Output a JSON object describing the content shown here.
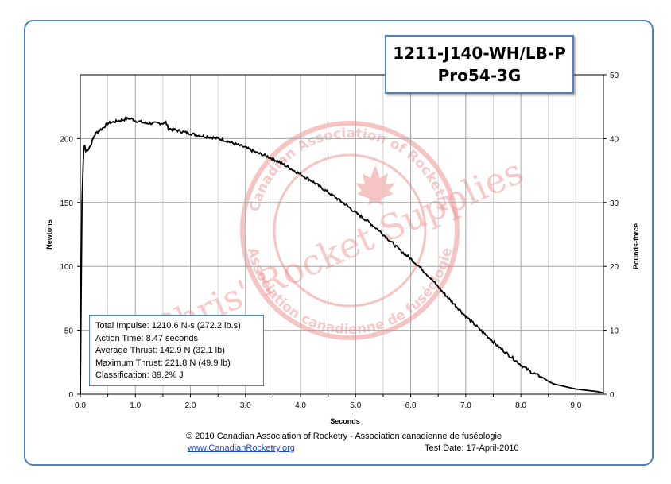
{
  "title": {
    "line1": "1211-J140-WH/LB-P",
    "line2": "Pro54-3G"
  },
  "stats": {
    "total_impulse": "Total Impulse: 1210.6 N-s (272.2 lb.s)",
    "action_time": "Action Time: 8.47 seconds",
    "average_thrust": "Average Thrust: 142.9 N (32.1 lb)",
    "maximum_thrust": "Maximum Thrust: 221.8 N (49.9 lb)",
    "classification": "Classification: 89.2% J"
  },
  "footer": {
    "copyright": "© 2010 Canadian Association of Rocketry - Association canadienne de fuséologie",
    "website": "www.CanadianRocketry.org",
    "test_date": "Test  Date: 17-April-2010"
  },
  "watermark": {
    "text": "Chris' Rocket Supplies",
    "seal_top": "Canadian Association of Rocketry",
    "seal_bottom": "Association canadienne de fuséologie"
  },
  "colors": {
    "frame": "#4f81bd",
    "curve": "#000000",
    "grid": "#a6a6a6",
    "watermark": "#f08a8a"
  },
  "chart_data": {
    "type": "line",
    "xlabel": "Seconds",
    "ylabel": "Newtons",
    "y2label": "Pounds-force",
    "xlim": [
      0,
      9.5
    ],
    "ylim": [
      0,
      250
    ],
    "y2lim": [
      0,
      50
    ],
    "x_ticks": [
      "0.0",
      "1.0",
      "2.0",
      "3.0",
      "4.0",
      "5.0",
      "6.0",
      "7.0",
      "8.0",
      "9.0"
    ],
    "y_ticks": [
      "0",
      "50",
      "100",
      "150",
      "200"
    ],
    "y2_ticks": [
      "0",
      "10",
      "20",
      "30",
      "40",
      "50"
    ],
    "grid": true,
    "series": [
      {
        "x": [
          0.0,
          0.03,
          0.06,
          0.08,
          0.1,
          0.15,
          0.2,
          0.25,
          0.3,
          0.4,
          0.5,
          0.6,
          0.7,
          0.8,
          0.9,
          1.0,
          1.1,
          1.2,
          1.3,
          1.4,
          1.5,
          1.55,
          1.6,
          1.7,
          1.8,
          1.9,
          2.0,
          2.2,
          2.4,
          2.6,
          2.8,
          3.0,
          3.2,
          3.4,
          3.6,
          3.8,
          4.0,
          4.2,
          4.4,
          4.6,
          4.8,
          5.0,
          5.2,
          5.4,
          5.6,
          5.8,
          6.0,
          6.2,
          6.4,
          6.6,
          6.8,
          7.0,
          7.2,
          7.4,
          7.6,
          7.8,
          8.0,
          8.2,
          8.4,
          8.5,
          8.6,
          8.8,
          9.0,
          9.2,
          9.4,
          9.5
        ],
        "y": [
          0,
          150,
          190,
          195,
          190,
          192,
          196,
          202,
          205,
          208,
          212,
          213,
          214,
          215,
          216,
          214,
          213,
          212,
          212,
          212,
          212,
          213,
          208,
          207,
          206,
          205,
          204,
          202,
          201,
          199,
          196,
          193,
          189,
          186,
          182,
          177,
          172,
          167,
          161,
          155,
          149,
          142,
          136,
          129,
          121,
          113,
          106,
          98,
          89,
          79,
          70,
          61,
          53,
          45,
          37,
          30,
          23,
          17,
          13,
          10,
          8,
          6,
          4,
          3,
          2,
          1
        ]
      }
    ]
  }
}
